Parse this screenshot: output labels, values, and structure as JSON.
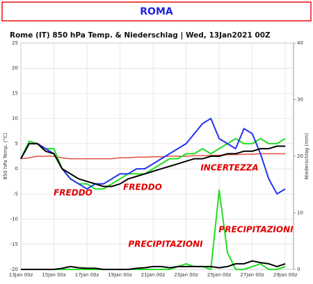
{
  "header": {
    "title": "ROMA"
  },
  "chart_data": {
    "type": "line",
    "title": "Rome  (IT)  850 hPa Temp. & Niederschlag | Wed, 13Jan2021 00Z",
    "ylabel": "850 hPa Temp. (°C)",
    "y2label": "Niederschlag (mm)",
    "annotations": [
      "FREDDO",
      "FREDDO",
      "INCERTEZZA",
      "PRECIPITAZIONI",
      "PRECIPITAZIONI"
    ],
    "x": [
      0,
      0.5,
      1,
      1.5,
      2,
      2.5,
      3,
      3.5,
      4,
      4.5,
      5,
      5.5,
      6,
      6.5,
      7,
      7.5,
      8,
      8.5,
      9,
      9.5,
      10,
      10.5,
      11,
      11.5,
      12,
      12.5,
      13,
      13.5,
      14,
      14.5,
      15,
      15.5,
      16
    ],
    "xlim": [
      0,
      16.5
    ],
    "xticks": [
      {
        "value": 0,
        "label": "13Jan 00z"
      },
      {
        "value": 2,
        "label": "15Jan 00z"
      },
      {
        "value": 4,
        "label": "17Jan 00z"
      },
      {
        "value": 6,
        "label": "19Jan 00z"
      },
      {
        "value": 8,
        "label": "21Jan 00z"
      },
      {
        "value": 10,
        "label": "23Jan 00z"
      },
      {
        "value": 12,
        "label": "25Jan 00z"
      },
      {
        "value": 14,
        "label": "27Jan 00z"
      },
      {
        "value": 16,
        "label": "29Jan 00z"
      }
    ],
    "ylim": [
      -20,
      25
    ],
    "yticks": [
      -20,
      -15,
      -10,
      -5,
      0,
      5,
      10,
      15,
      20,
      25
    ],
    "y2lim": [
      0,
      40
    ],
    "y2ticks": [
      0,
      10,
      20,
      30,
      40
    ],
    "grid": true,
    "series": [
      {
        "color": "#e05040",
        "width": 1.5,
        "values": [
          2,
          2.2,
          2.5,
          2.5,
          2.5,
          2.2,
          2,
          2,
          2,
          2,
          2,
          2,
          2.2,
          2.2,
          2.3,
          2.3,
          2.4,
          2.4,
          2.5,
          2.5,
          2.5,
          2.6,
          2.6,
          2.7,
          2.7,
          2.8,
          2.8,
          2.9,
          2.9,
          3,
          3,
          3,
          3
        ]
      },
      {
        "color": "#22dd22",
        "width": 2,
        "values": [
          2,
          5.5,
          5,
          4,
          4,
          0,
          -2,
          -3,
          -3,
          -4,
          -4,
          -3,
          -2,
          -1,
          -1,
          -1,
          0,
          1,
          2,
          2,
          3,
          3,
          4,
          3,
          4,
          5,
          6,
          5,
          5,
          6,
          5,
          5,
          6
        ]
      },
      {
        "color": "#2233ee",
        "width": 2,
        "values": [
          2,
          5,
          5,
          4,
          3,
          0,
          -2,
          -3,
          -4,
          -3,
          -3,
          -2,
          -1,
          -1,
          0,
          0,
          1,
          2,
          3,
          4,
          5,
          7,
          9,
          10,
          6,
          5,
          4,
          8,
          7,
          3,
          -2,
          -5,
          -4
        ]
      },
      {
        "color": "#000000",
        "width": 2,
        "values": [
          2,
          5,
          5,
          3.5,
          3,
          0,
          -1,
          -2,
          -2.5,
          -3,
          -3.5,
          -3.5,
          -3,
          -2,
          -1.5,
          -1,
          -0.5,
          0,
          0.5,
          1,
          1.5,
          2,
          2,
          2.5,
          2.5,
          3,
          3,
          3.5,
          3.5,
          4,
          4,
          4.5,
          4.5
        ]
      },
      {
        "color": "#22dd22",
        "width": 2,
        "axis": "y2",
        "values": [
          0,
          0,
          0,
          0,
          0,
          0,
          0,
          0,
          0,
          0,
          0,
          0,
          0,
          0,
          0,
          0,
          0,
          0,
          0,
          0.5,
          1,
          0.5,
          0.5,
          0,
          14,
          3,
          0,
          0,
          0.5,
          1,
          0,
          0,
          0.5
        ]
      },
      {
        "color": "#000000",
        "width": 2,
        "axis": "y2",
        "values": [
          0,
          0,
          0,
          0,
          0,
          0.2,
          0.5,
          0.3,
          0.2,
          0.2,
          0,
          0,
          0,
          0,
          0.2,
          0.3,
          0.5,
          0.5,
          0.3,
          0.5,
          0.5,
          0.5,
          0.5,
          0.5,
          0.3,
          0.5,
          1,
          1,
          1.5,
          1.2,
          1,
          0.5,
          1
        ]
      }
    ]
  }
}
